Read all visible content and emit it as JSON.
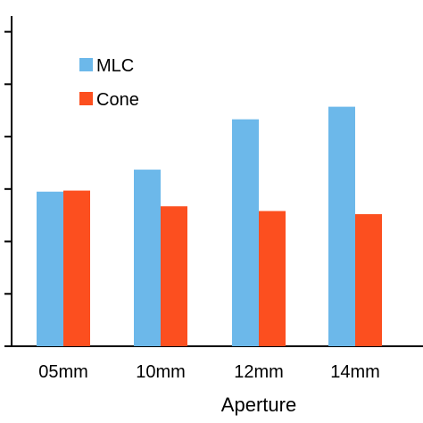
{
  "chart_data": {
    "type": "bar",
    "categories": [
      "05mm",
      "10mm",
      "12mm",
      "14mm"
    ],
    "series": [
      {
        "name": "MLC",
        "color": "#6cb8ea",
        "values": [
          2.95,
          3.37,
          4.33,
          4.57
        ]
      },
      {
        "name": "Cone",
        "color": "#fc4f1f",
        "values": [
          2.97,
          2.67,
          2.58,
          2.52
        ]
      }
    ],
    "xlabel": "Aperture",
    "ylabel": "",
    "ylim": [
      0,
      6.3
    ],
    "yticks": [
      0,
      1,
      2,
      3,
      4,
      5,
      6
    ],
    "ytick_labels_visible": false,
    "legend_position": "top-left",
    "grid": false
  }
}
